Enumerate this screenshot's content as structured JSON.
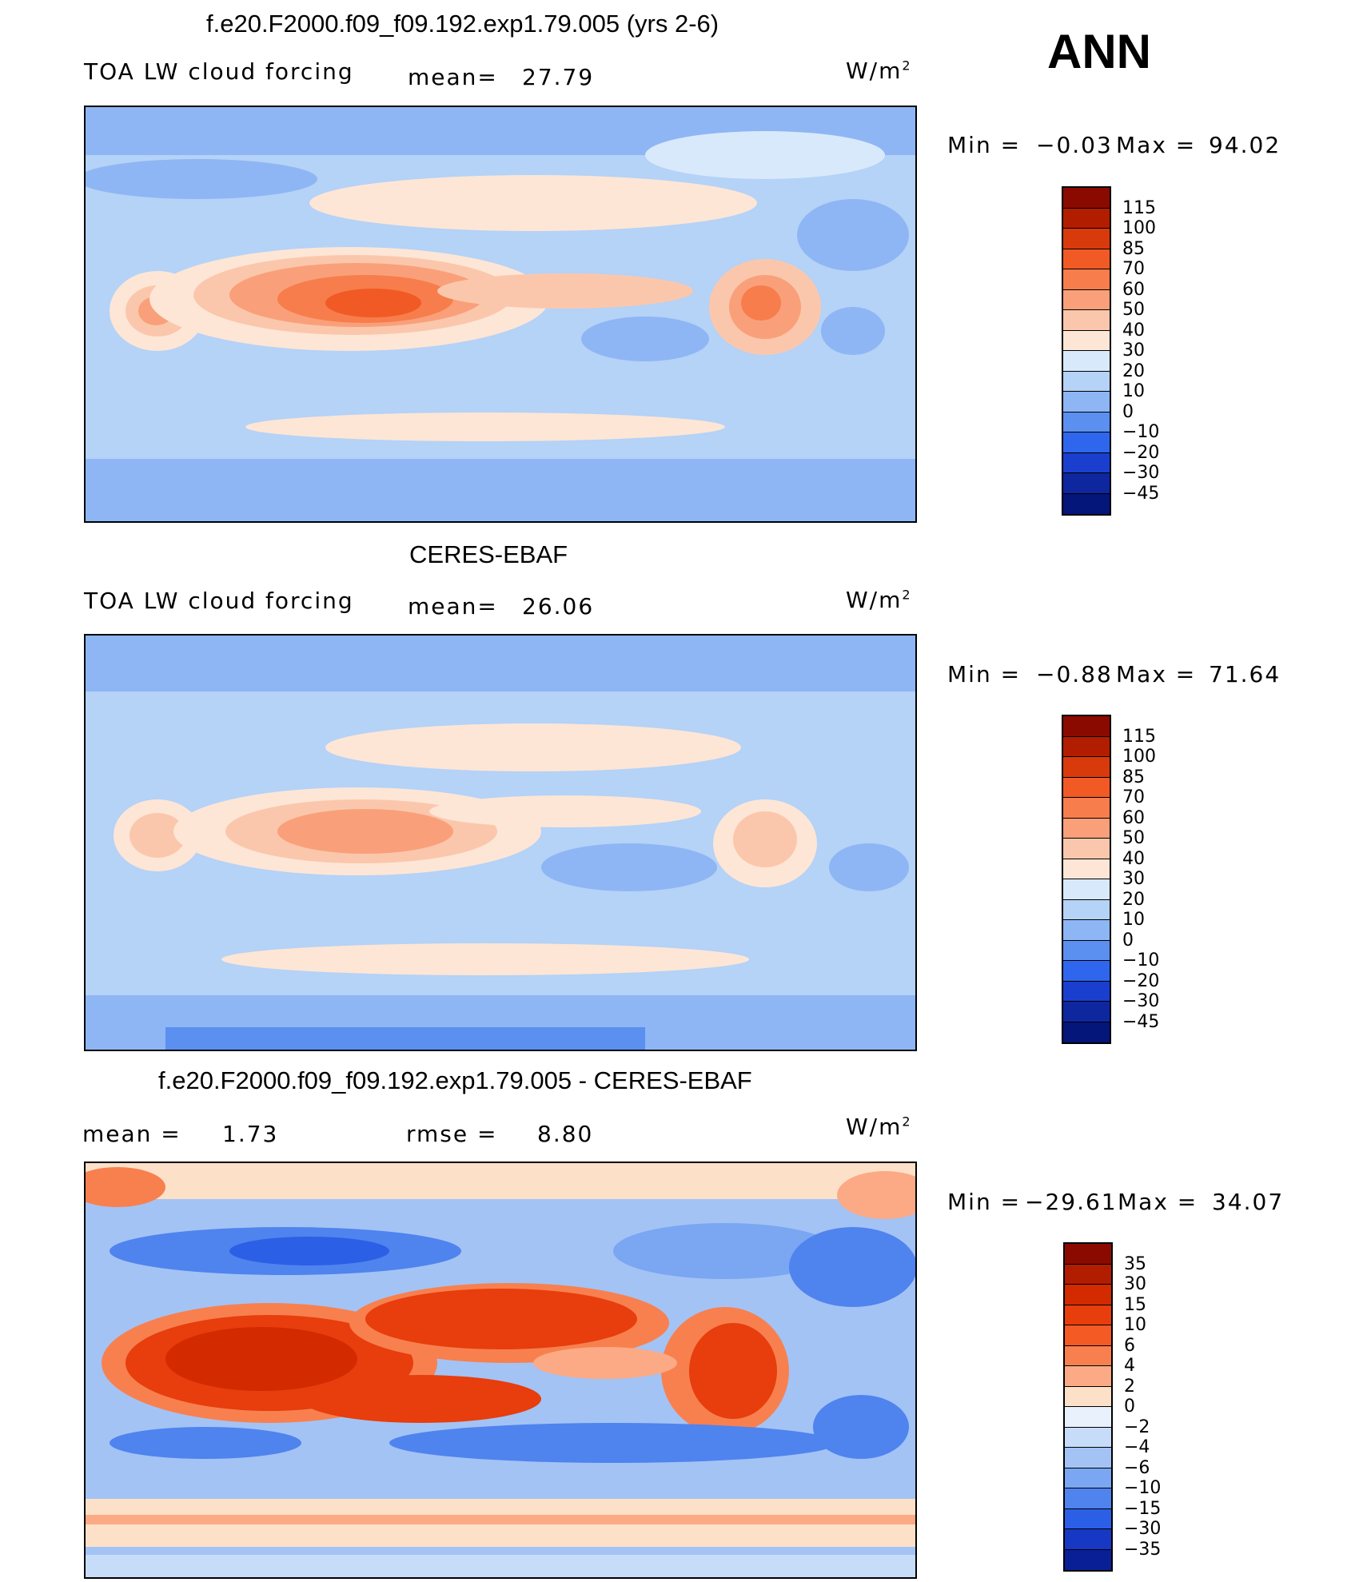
{
  "season": "ANN",
  "chart_data": [
    {
      "type": "heatmap",
      "title": "f.e20.F2000.f09_f09.192.exp1.79.005 (yrs 2-6)",
      "variable": "TOA LW cloud forcing",
      "mean_label": "mean=",
      "mean": "27.79",
      "units_base": "W/m",
      "units_exp": "2",
      "min_label": "Min =",
      "min": "−0.03",
      "max_label": "Max =",
      "max": "94.02",
      "colorbar_labels": [
        "115",
        "100",
        "85",
        "70",
        "60",
        "50",
        "40",
        "30",
        "20",
        "10",
        "0",
        "−10",
        "−20",
        "−30",
        "−45"
      ],
      "colorbar_colors": [
        "#8b0a00",
        "#b21d00",
        "#d93a0c",
        "#f15a24",
        "#f77d4c",
        "#f9a07a",
        "#fbc7ac",
        "#fde6d6",
        "#d8e9fb",
        "#b5d2f7",
        "#8eb6f4",
        "#5b8ff0",
        "#2f66ee",
        "#1a3fcf",
        "#0e279f",
        "#04167a"
      ]
    },
    {
      "type": "heatmap",
      "title": "CERES-EBAF",
      "variable": "TOA LW cloud forcing",
      "mean_label": "mean=",
      "mean": "26.06",
      "units_base": "W/m",
      "units_exp": "2",
      "min_label": "Min =",
      "min": "−0.88",
      "max_label": "Max =",
      "max": "71.64",
      "colorbar_labels": [
        "115",
        "100",
        "85",
        "70",
        "60",
        "50",
        "40",
        "30",
        "20",
        "10",
        "0",
        "−10",
        "−20",
        "−30",
        "−45"
      ],
      "colorbar_colors": [
        "#8b0a00",
        "#b21d00",
        "#d93a0c",
        "#f15a24",
        "#f77d4c",
        "#f9a07a",
        "#fbc7ac",
        "#fde6d6",
        "#d8e9fb",
        "#b5d2f7",
        "#8eb6f4",
        "#5b8ff0",
        "#2f66ee",
        "#1a3fcf",
        "#0e279f",
        "#04167a"
      ]
    },
    {
      "type": "heatmap",
      "title": "f.e20.F2000.f09_f09.192.exp1.79.005 - CERES-EBAF",
      "mean_label": "mean =",
      "mean": "1.73",
      "rmse_label": "rmse =",
      "rmse": "8.80",
      "units_base": "W/m",
      "units_exp": "2",
      "min_label": "Min =",
      "min": "−29.61",
      "max_label": "Max =",
      "max": "34.07",
      "colorbar_labels": [
        "35",
        "30",
        "15",
        "10",
        "6",
        "4",
        "2",
        "0",
        "−2",
        "−4",
        "−6",
        "−10",
        "−15",
        "−30",
        "−35"
      ],
      "colorbar_colors": [
        "#8b0a00",
        "#b21d00",
        "#d32a00",
        "#e83d0c",
        "#f45a24",
        "#f8804f",
        "#fbaa85",
        "#fde0c8",
        "#e8f1fc",
        "#c7dcf8",
        "#a3c3f5",
        "#7aa6f2",
        "#4f83ee",
        "#2b5fe6",
        "#1638c4",
        "#091f95"
      ]
    }
  ]
}
